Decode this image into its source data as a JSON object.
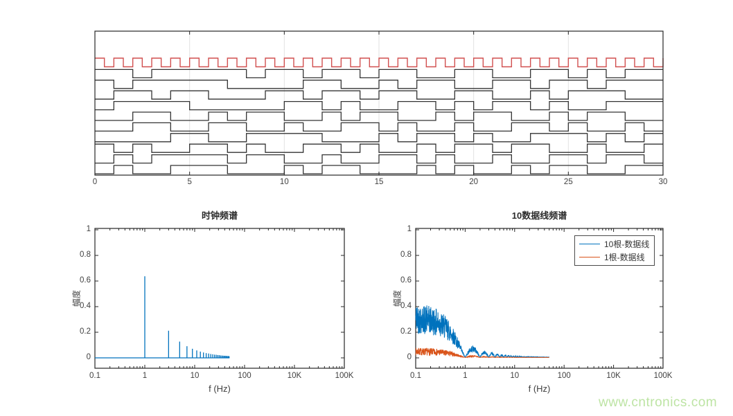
{
  "watermark": {
    "text": "www.cntronics.com",
    "color": "#bde4a4"
  },
  "colors": {
    "blue": "#0072BD",
    "orange": "#D95319",
    "red": "#d14f4f",
    "waveform_black": "#333333",
    "axis": "#262626",
    "grid": "#e2e2e2",
    "tick_label": "#3f3f3f"
  },
  "chart_data": [
    {
      "id": "digital-waveforms",
      "type": "line",
      "title": "",
      "xlabel": "",
      "ylabel": "",
      "xlim": [
        0,
        30
      ],
      "xtick_labels": [
        "0",
        "5",
        "10",
        "15",
        "20",
        "25",
        "30"
      ],
      "grid": "vertical-major-only",
      "legend_position": "none",
      "clock": {
        "name": "clock-1Hz",
        "color_key": "red",
        "period": 1,
        "duty": 0.5,
        "cycles": 30,
        "starts_high": true
      },
      "data_lines": {
        "bit_period": 1,
        "color_key": "waveform_black",
        "bits": [
          "110111110110110110011001101011",
          "101111100001100101100110110111",
          "011011000110110110011001011100",
          "011110000011010011010110100111",
          "001100101100101100101100101100",
          "001100110010011010010011010010",
          "000011001111000101101001110101",
          "101001101001101001011011001001",
          "010111101100100110100100110110",
          "010011100010110001010010110011"
        ]
      }
    },
    {
      "id": "clock-spectrum",
      "type": "line",
      "title": "时钟频谱",
      "xlabel": "f (Hz)",
      "ylabel": "幅度",
      "xscale": "log",
      "xtick_labels": [
        "0.1",
        "1",
        "10",
        "100",
        "10K",
        "100K"
      ],
      "ylim": [
        0,
        1
      ],
      "ytick_labels": [
        "0",
        "0.2",
        "0.4",
        "0.6",
        "0.8",
        "1"
      ],
      "grid": "off",
      "series_color_key": "blue",
      "baseline": {
        "y": 0,
        "from": 0.1,
        "to": 50
      },
      "stems": [
        [
          1,
          0.637
        ],
        [
          3,
          0.212
        ],
        [
          5,
          0.127
        ],
        [
          7,
          0.091
        ],
        [
          9,
          0.071
        ],
        [
          11,
          0.058
        ],
        [
          13,
          0.049
        ],
        [
          15,
          0.042
        ],
        [
          17,
          0.037
        ],
        [
          19,
          0.034
        ],
        [
          21,
          0.03
        ],
        [
          23,
          0.028
        ],
        [
          25,
          0.025
        ],
        [
          27,
          0.024
        ],
        [
          29,
          0.022
        ],
        [
          31,
          0.021
        ],
        [
          33,
          0.019
        ],
        [
          35,
          0.018
        ],
        [
          37,
          0.017
        ],
        [
          39,
          0.016
        ],
        [
          41,
          0.016
        ],
        [
          43,
          0.015
        ],
        [
          45,
          0.014
        ],
        [
          47,
          0.014
        ],
        [
          49,
          0.013
        ]
      ]
    },
    {
      "id": "data-lines-spectrum",
      "type": "line",
      "title": "10数据线频谱",
      "xlabel": "f (Hz)",
      "ylabel": "幅度",
      "xscale": "log",
      "xtick_labels": [
        "0.1",
        "1",
        "10",
        "100",
        "10K",
        "100K"
      ],
      "ylim": [
        0,
        1
      ],
      "ytick_labels": [
        "0",
        "0.2",
        "0.4",
        "0.6",
        "0.8",
        "1"
      ],
      "grid": "off",
      "legend": {
        "position": "top-right",
        "entries": [
          {
            "label": "10根-数据线",
            "color_key": "blue"
          },
          {
            "label": "1根-数据线",
            "color_key": "orange"
          }
        ]
      },
      "series": [
        {
          "name": "10根-数据线",
          "color_key": "blue",
          "model": "abs-sinc-noise",
          "base_amplitude": 0.3,
          "noise_min": 0.62,
          "noise_max": 1.42,
          "floor": 0.004,
          "f_range": [
            0.1,
            50
          ],
          "seed": 42,
          "envelope_estimate": [
            [
              0.1,
              0.3
            ],
            [
              0.3,
              0.28
            ],
            [
              0.5,
              0.19
            ],
            [
              0.7,
              0.12
            ],
            [
              1,
              0.01
            ],
            [
              1.5,
              0.065
            ],
            [
              2,
              0.01
            ],
            [
              2.5,
              0.04
            ],
            [
              3.5,
              0.028
            ],
            [
              5,
              0.019
            ],
            [
              7,
              0.013
            ],
            [
              10,
              0.009
            ],
            [
              20,
              0.005
            ],
            [
              50,
              0.003
            ]
          ]
        },
        {
          "name": "1根-数据线",
          "color_key": "orange",
          "model": "abs-sinc-noise",
          "base_amplitude": 0.055,
          "noise_min": 0.3,
          "noise_max": 1.4,
          "floor": 0.003,
          "f_range": [
            0.1,
            50
          ],
          "seed": 7,
          "envelope_estimate": [
            [
              0.1,
              0.045
            ],
            [
              0.5,
              0.035
            ],
            [
              1,
              0.004
            ],
            [
              1.5,
              0.012
            ],
            [
              2.5,
              0.008
            ],
            [
              5,
              0.004
            ],
            [
              10,
              0.003
            ],
            [
              50,
              0.002
            ]
          ]
        }
      ]
    }
  ]
}
